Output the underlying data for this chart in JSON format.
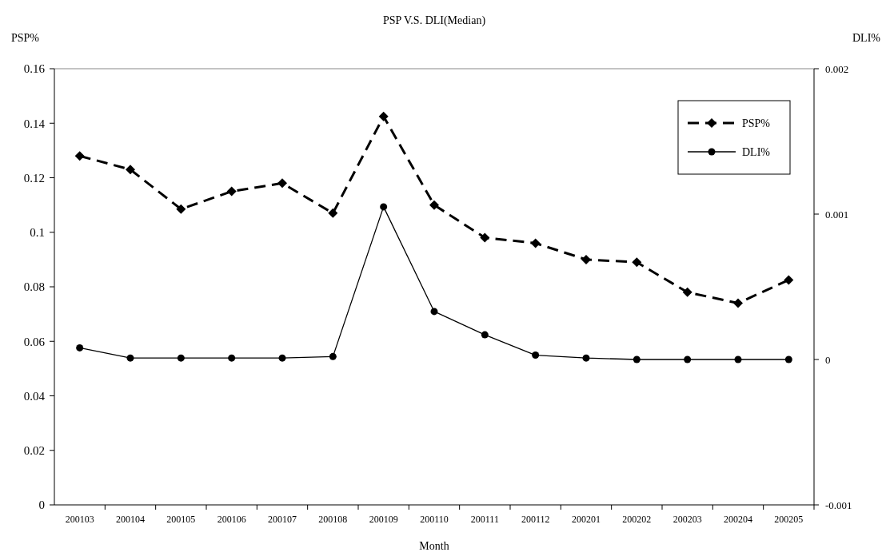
{
  "chart_data": {
    "type": "line",
    "title": "PSP V.S. DLI(Median)",
    "xlabel": "Month",
    "ylabel": "PSP%",
    "y2label": "DLI%",
    "categories": [
      "200103",
      "200104",
      "200105",
      "200106",
      "200107",
      "200108",
      "200109",
      "200110",
      "200111",
      "200112",
      "200201",
      "200202",
      "200203",
      "200204",
      "200205"
    ],
    "series": [
      {
        "name": "PSP%",
        "color": "#000000",
        "marker": "diamond",
        "line_style": "dashed",
        "values": [
          0.128,
          0.123,
          0.1085,
          0.115,
          0.118,
          0.107,
          0.1425,
          0.11,
          0.098,
          0.096,
          0.09,
          0.089,
          0.078,
          0.074,
          0.0825
        ]
      },
      {
        "name": "DLI%",
        "color": "#000000",
        "marker": "circle",
        "line_style": "solid",
        "axis": "y2",
        "values": [
          8e-05,
          1e-05,
          1e-05,
          1e-05,
          1e-05,
          2e-05,
          0.00105,
          0.00033,
          0.00017,
          3e-05,
          1e-05,
          0,
          0,
          0,
          0
        ]
      }
    ],
    "ylim": [
      0,
      0.16
    ],
    "yticks": [
      0,
      0.02,
      0.04,
      0.06,
      0.08,
      0.1,
      0.12,
      0.14,
      0.16
    ],
    "y2lim": [
      -0.001,
      0.002
    ],
    "y2ticks": [
      -0.001,
      0,
      0.001,
      0.002
    ],
    "grid": false,
    "legend": "top right"
  }
}
